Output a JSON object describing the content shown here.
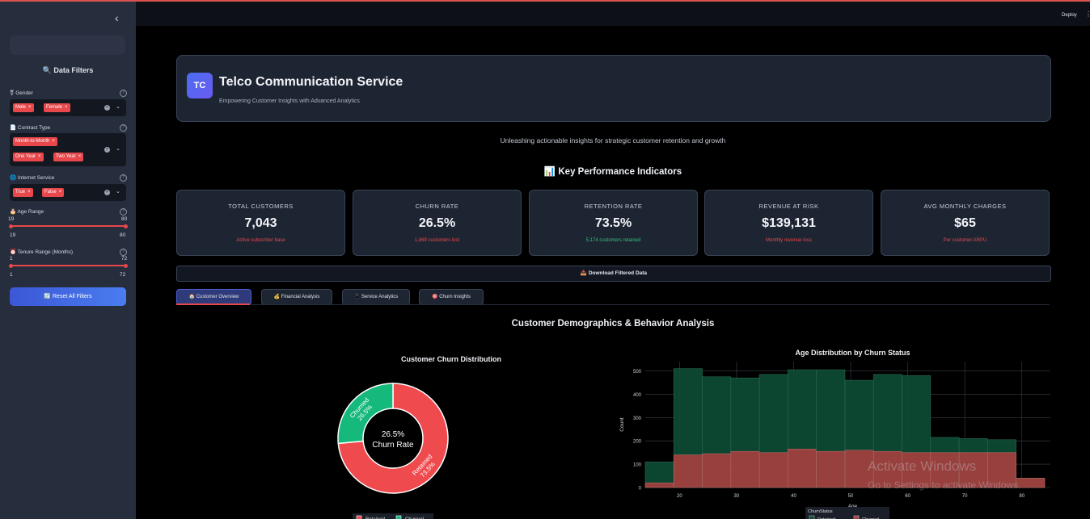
{
  "sidebar": {
    "title": "🔍 Data Filters",
    "filters": {
      "gender": {
        "label": "⚧ Gender",
        "tags": [
          "Male",
          "Female"
        ]
      },
      "contract": {
        "label": "📄 Contract Type",
        "tags": [
          "Month-to-Month",
          "One Year",
          "Two Year"
        ]
      },
      "internet": {
        "label": "🌐 Internet Service",
        "tags": [
          "True",
          "False"
        ]
      },
      "age": {
        "label": "🎂 Age Range",
        "min": "19",
        "max": "80",
        "low": "19",
        "high": "80"
      },
      "tenure": {
        "label": "⏰ Tenure Range (Months)",
        "min": "1",
        "max": "72",
        "low": "1",
        "high": "72"
      }
    },
    "reset_label": "🔄 Reset All Filters"
  },
  "header": {
    "deploy": "Deploy",
    "menu": "⋮"
  },
  "hero": {
    "logo": "TC",
    "title": "Telco Communication Service",
    "subtitle": "Empowering Customer Insights with Advanced Analytics"
  },
  "tagline": "Unleashing actionable insights for strategic customer retention and growth",
  "kpi_heading": "📊 Key Performance Indicators",
  "kpis": [
    {
      "label": "TOTAL CUSTOMERS",
      "value": "7,043",
      "sub": "Active subscriber base",
      "color": "#e8474b"
    },
    {
      "label": "CHURN RATE",
      "value": "26.5%",
      "sub": "1,869 customers lost",
      "color": "#e8474b"
    },
    {
      "label": "RETENTION RATE",
      "value": "73.5%",
      "sub": "5,174 customers retained",
      "color": "#2ec27e"
    },
    {
      "label": "REVENUE AT RISK",
      "value": "$139,131",
      "sub": "Monthly revenue loss",
      "color": "#e8474b"
    },
    {
      "label": "AVG MONTHLY CHARGES",
      "value": "$65",
      "sub": "Per customer ARPU",
      "color": "#e8474b"
    }
  ],
  "download_label": "📥 Download Filtered Data",
  "tabs": [
    "🏠 Customer Overview",
    "💰 Financial Analysis",
    "📱 Service Analytics",
    "🎯 Churn Insights"
  ],
  "section_title": "Customer Demographics & Behavior Analysis",
  "watermark": {
    "line1": "Activate Windows",
    "line2": "Go to Settings to activate Windows."
  },
  "colors": {
    "retained": "#16b97c",
    "churned": "#ef4a4e",
    "accent": "#e8474b"
  },
  "chart_data": [
    {
      "type": "pie",
      "title": "Customer Churn Distribution",
      "labels": [
        "Churned",
        "Retained"
      ],
      "values": [
        26.5,
        73.5
      ],
      "slice_labels": [
        "Churned\n26.5%",
        "Retained\n73.5%"
      ],
      "center_text": [
        "26.5%",
        "Churn Rate"
      ],
      "legend": [
        "Retained",
        "Churned"
      ]
    },
    {
      "type": "bar",
      "title": "Age Distribution by Churn Status",
      "xlabel": "Age",
      "ylabel": "Count",
      "xlim": [
        14,
        85
      ],
      "ylim": [
        0,
        540
      ],
      "xticks": [
        20,
        30,
        40,
        50,
        60,
        70,
        80
      ],
      "yticks": [
        0,
        100,
        200,
        300,
        400,
        500
      ],
      "bin_edges": [
        14,
        19,
        24,
        29,
        34,
        39,
        44,
        49,
        54,
        59,
        64,
        69,
        74,
        79,
        84
      ],
      "series": [
        {
          "name": "Retained",
          "values": [
            110,
            510,
            475,
            470,
            485,
            505,
            505,
            460,
            485,
            480,
            215,
            210,
            205,
            40
          ]
        },
        {
          "name": "Churned",
          "values": [
            20,
            140,
            145,
            155,
            150,
            165,
            155,
            160,
            155,
            150,
            150,
            150,
            150,
            40
          ]
        }
      ],
      "legend_title": "ChurnStatus",
      "legend": [
        "Retained",
        "Churned"
      ]
    }
  ]
}
